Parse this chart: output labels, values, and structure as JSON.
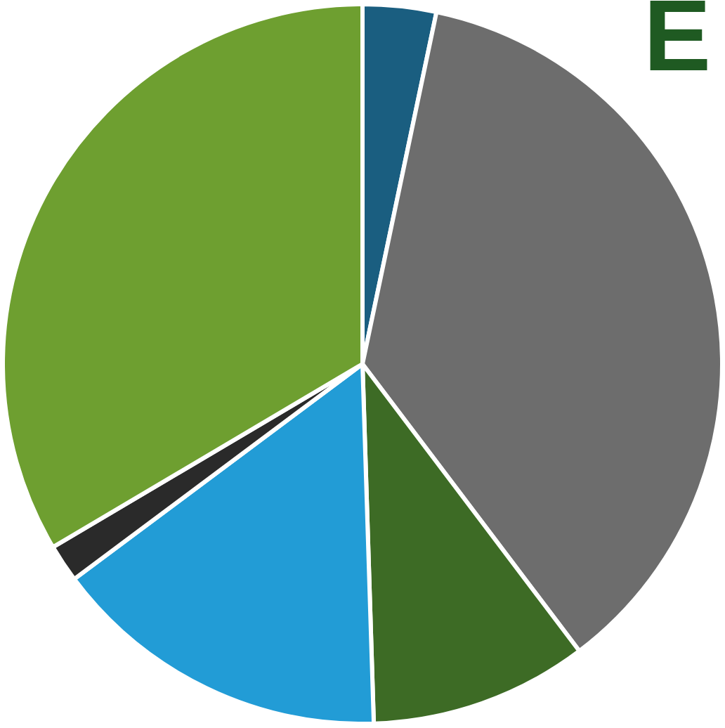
{
  "chart_data": {
    "type": "pie",
    "categories": [
      null,
      null,
      null,
      null,
      null,
      null
    ],
    "values": [
      3.3,
      36.4,
      9.8,
      15.3,
      1.7,
      33.5
    ],
    "colors": [
      "#1a5e80",
      "#6d6d6d",
      "#3d6b25",
      "#229cd6",
      "#2a2a2a",
      "#6e9f30"
    ],
    "annotations": [
      "E"
    ]
  }
}
